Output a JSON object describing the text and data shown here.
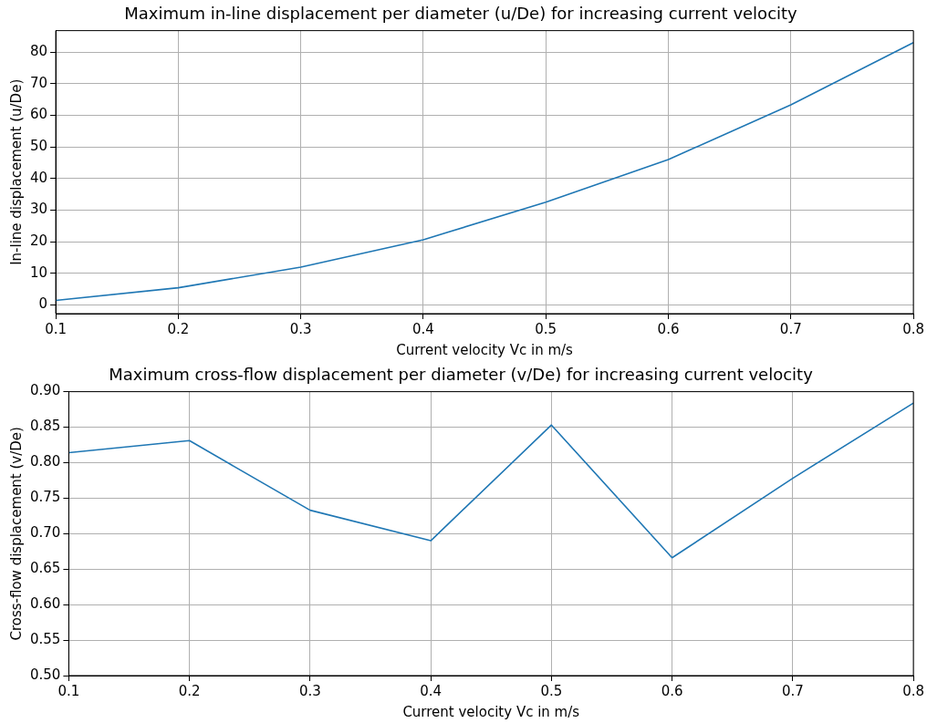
{
  "chart_data": [
    {
      "type": "line",
      "title": "Maximum in-line displacement per diameter (u/De) for increasing current velocity",
      "xlabel": "Current velocity Vc in m/s",
      "ylabel": "In-line displacement (u/De)",
      "x": [
        0.1,
        0.2,
        0.3,
        0.4,
        0.5,
        0.6,
        0.7,
        0.8
      ],
      "series": [
        {
          "color": "#1f77b4",
          "values": [
            1.4,
            5.4,
            11.9,
            20.6,
            32.5,
            46,
            63.3,
            83
          ]
        }
      ],
      "xlim": [
        0.1,
        0.8
      ],
      "xticks": [
        0.1,
        0.2,
        0.3,
        0.4,
        0.5,
        0.6,
        0.7,
        0.8
      ],
      "ylim": [
        -2.8,
        86.8
      ],
      "yticks": [
        0,
        10,
        20,
        30,
        40,
        50,
        60,
        70,
        80
      ],
      "grid": true,
      "legend": false
    },
    {
      "type": "line",
      "title": "Maximum cross-flow displacement per diameter (v/De) for increasing current velocity",
      "xlabel": "Current velocity Vc in m/s",
      "ylabel": "Cross-flow displacement (v/De)",
      "x": [
        0.1,
        0.2,
        0.3,
        0.4,
        0.5,
        0.6,
        0.7,
        0.8
      ],
      "series": [
        {
          "color": "#1f77b4",
          "values": [
            0.814,
            0.831,
            0.733,
            0.69,
            0.853,
            0.666,
            0.778,
            0.884
          ]
        }
      ],
      "xlim": [
        0.1,
        0.8
      ],
      "xticks": [
        0.1,
        0.2,
        0.3,
        0.4,
        0.5,
        0.6,
        0.7,
        0.8
      ],
      "ylim": [
        0.5,
        0.9
      ],
      "yticks": [
        {
          "value": 0.5,
          "label": "0.50"
        },
        {
          "value": 0.55,
          "label": "0.55"
        },
        {
          "value": 0.6,
          "label": "0.60"
        },
        {
          "value": 0.65,
          "label": "0.65"
        },
        {
          "value": 0.7,
          "label": "0.70"
        },
        {
          "value": 0.75,
          "label": "0.75"
        },
        {
          "value": 0.8,
          "label": "0.80"
        },
        {
          "value": 0.85,
          "label": "0.85"
        },
        {
          "value": 0.9,
          "label": "0.90"
        }
      ],
      "grid": true,
      "legend": false
    }
  ]
}
